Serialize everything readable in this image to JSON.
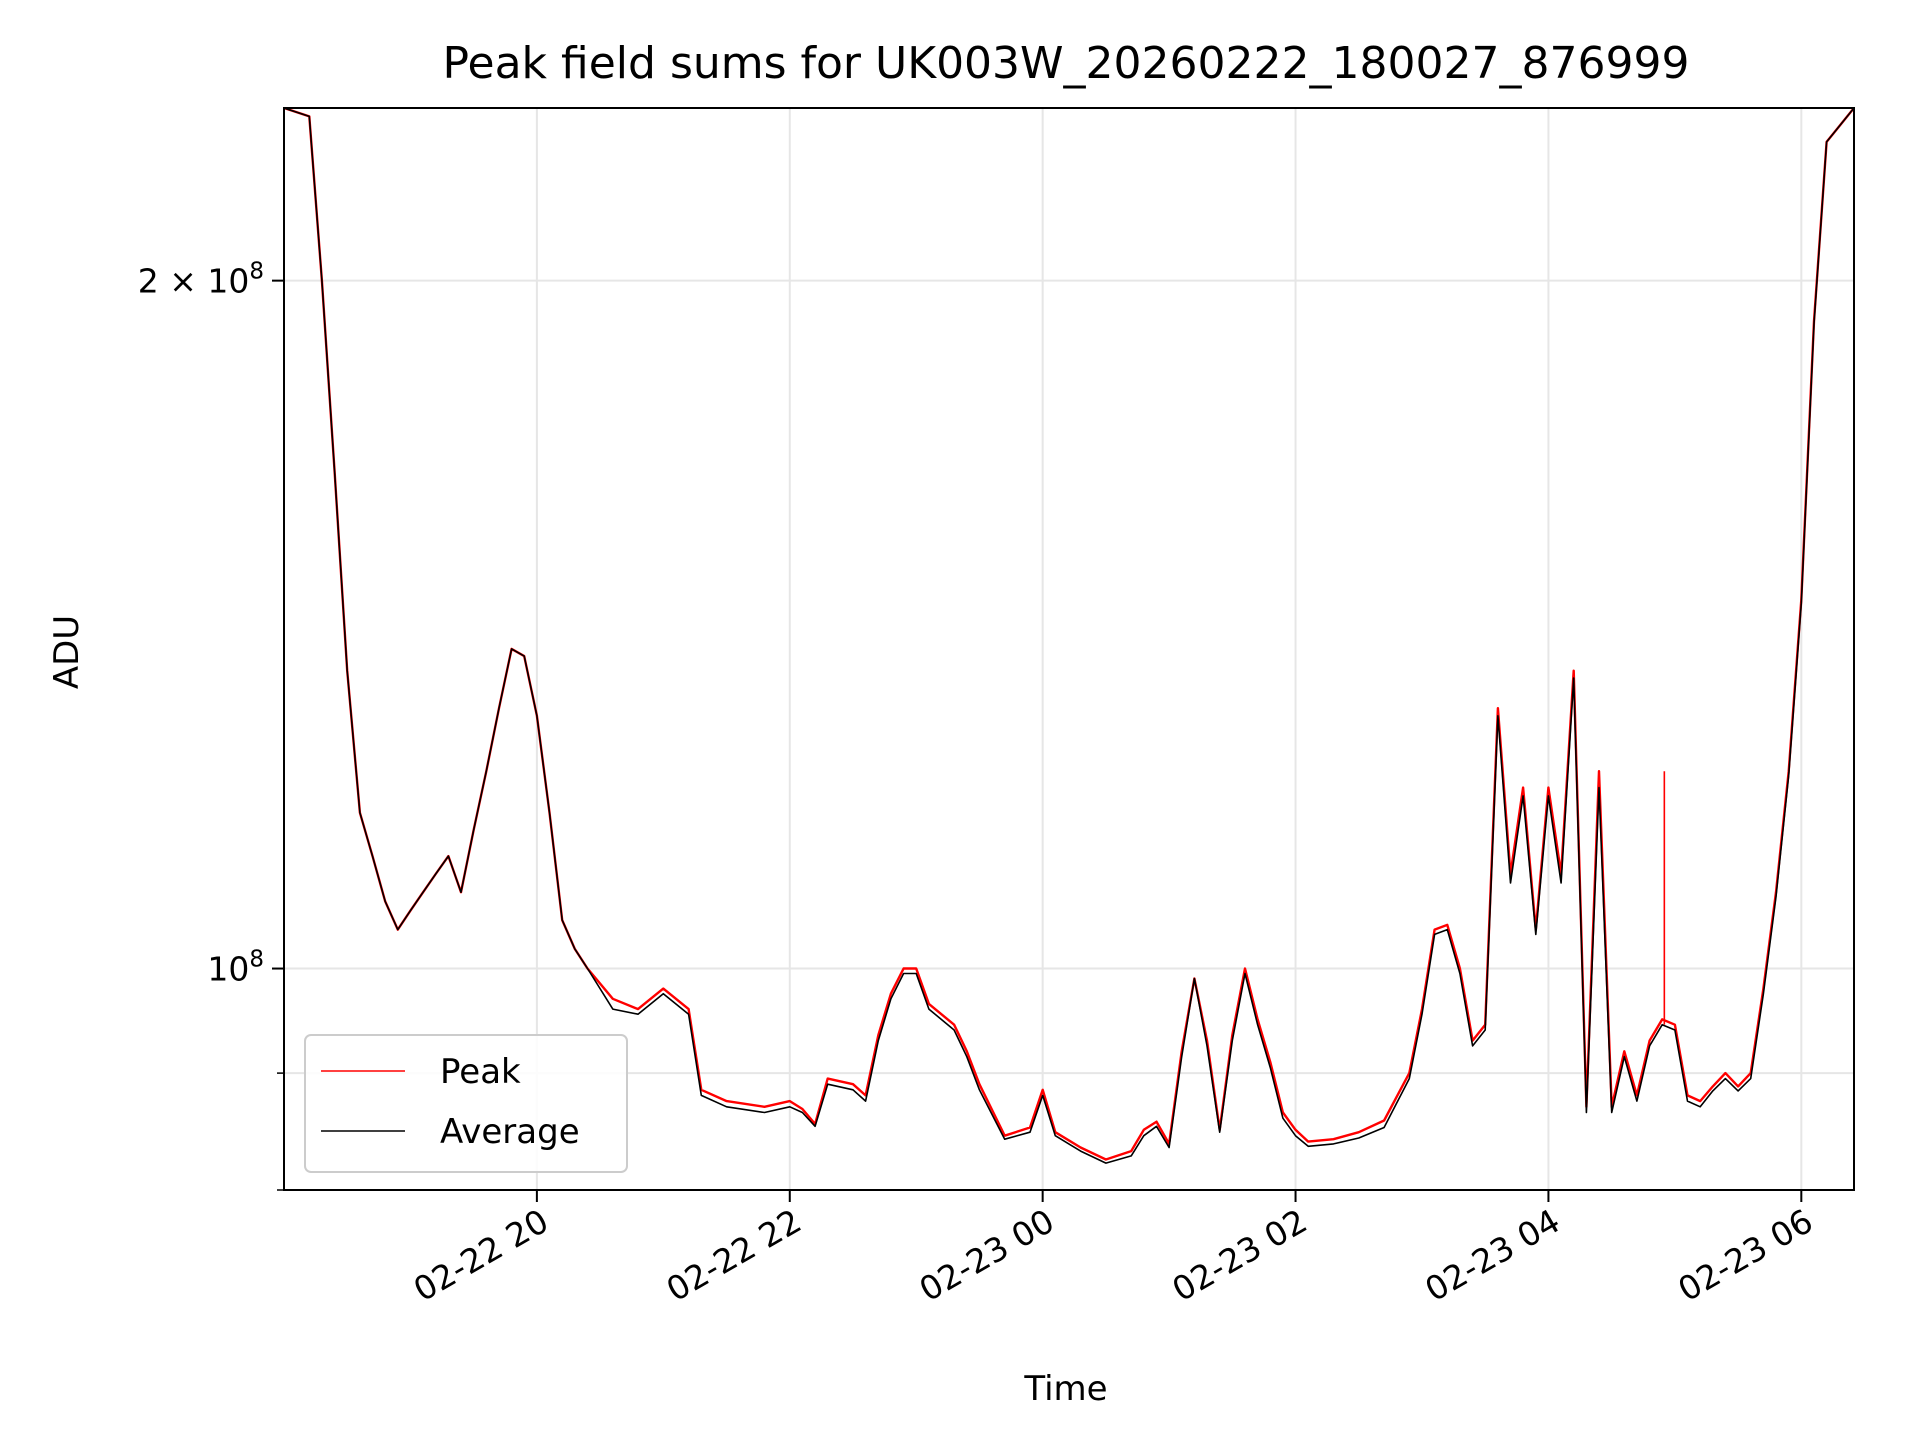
{
  "chart_data": {
    "type": "line",
    "title": "Peak field sums for UK003W_20260222_180027_876999",
    "xlabel": "Time",
    "ylabel": "ADU",
    "x_range": [
      "2026-02-22 18:00",
      "2026-02-23 06:25"
    ],
    "ylim": [
      80000000.0,
      238000000.0
    ],
    "y_scale": "log",
    "grid": true,
    "legend_position": "lower-left",
    "x_ticks": [
      {
        "value": "2026-02-22 20:00",
        "label": "02-22 20"
      },
      {
        "value": "2026-02-22 22:00",
        "label": "02-22 22"
      },
      {
        "value": "2026-02-23 00:00",
        "label": "02-23 00"
      },
      {
        "value": "2026-02-23 02:00",
        "label": "02-23 02"
      },
      {
        "value": "2026-02-23 04:00",
        "label": "02-23 04"
      },
      {
        "value": "2026-02-23 06:00",
        "label": "02-23 06"
      }
    ],
    "y_major_ticks": [
      {
        "value": 100000000,
        "base": "10",
        "exp": "8",
        "coef": ""
      },
      {
        "value": 200000000,
        "base": "10",
        "exp": "8",
        "coef": "2"
      }
    ],
    "y_minor_ticks": [
      80000000,
      90000000
    ],
    "series": [
      {
        "name": "Peak",
        "color": "#ff0000",
        "points": [
          [
            "2026-02-22 18:00",
            238000000.0
          ],
          [
            "2026-02-22 18:12",
            236000000.0
          ],
          [
            "2026-02-22 18:18",
            200000000.0
          ],
          [
            "2026-02-22 18:24",
            165000000.0
          ],
          [
            "2026-02-22 18:30",
            135000000.0
          ],
          [
            "2026-02-22 18:36",
            117000000.0
          ],
          [
            "2026-02-22 18:42",
            112000000.0
          ],
          [
            "2026-02-22 18:48",
            107000000.0
          ],
          [
            "2026-02-22 18:54",
            104000000.0
          ],
          [
            "2026-02-22 19:00",
            106000000.0
          ],
          [
            "2026-02-22 19:06",
            108000000.0
          ],
          [
            "2026-02-22 19:12",
            110000000.0
          ],
          [
            "2026-02-22 19:18",
            112000000.0
          ],
          [
            "2026-02-22 19:24",
            108000000.0
          ],
          [
            "2026-02-22 19:30",
            115000000.0
          ],
          [
            "2026-02-22 19:36",
            122000000.0
          ],
          [
            "2026-02-22 19:42",
            130000000.0
          ],
          [
            "2026-02-22 19:48",
            138000000.0
          ],
          [
            "2026-02-22 19:54",
            137000000.0
          ],
          [
            "2026-02-22 20:00",
            129000000.0
          ],
          [
            "2026-02-22 20:06",
            117000000.0
          ],
          [
            "2026-02-22 20:12",
            105000000.0
          ],
          [
            "2026-02-22 20:18",
            102000000.0
          ],
          [
            "2026-02-22 20:24",
            100000000.0
          ],
          [
            "2026-02-22 20:36",
            97000000.0
          ],
          [
            "2026-02-22 20:48",
            96000000.0
          ],
          [
            "2026-02-22 21:00",
            98000000.0
          ],
          [
            "2026-02-22 21:12",
            96000000.0
          ],
          [
            "2026-02-22 21:18",
            88500000.0
          ],
          [
            "2026-02-22 21:30",
            87500000.0
          ],
          [
            "2026-02-22 21:48",
            87000000.0
          ],
          [
            "2026-02-22 22:00",
            87500000.0
          ],
          [
            "2026-02-22 22:06",
            86800000.0
          ],
          [
            "2026-02-22 22:12",
            85500000.0
          ],
          [
            "2026-02-22 22:18",
            89500000.0
          ],
          [
            "2026-02-22 22:30",
            89000000.0
          ],
          [
            "2026-02-22 22:36",
            88000000.0
          ],
          [
            "2026-02-22 22:42",
            93500000.0
          ],
          [
            "2026-02-22 22:48",
            97500000.0
          ],
          [
            "2026-02-22 22:54",
            100000000.0
          ],
          [
            "2026-02-22 23:00",
            100000000.0
          ],
          [
            "2026-02-22 23:06",
            96500000.0
          ],
          [
            "2026-02-22 23:18",
            94500000.0
          ],
          [
            "2026-02-22 23:24",
            92000000.0
          ],
          [
            "2026-02-22 23:30",
            89000000.0
          ],
          [
            "2026-02-22 23:42",
            84500000.0
          ],
          [
            "2026-02-22 23:54",
            85200000.0
          ],
          [
            "2026-02-23 00:00",
            88500000.0
          ],
          [
            "2026-02-23 00:06",
            84800000.0
          ],
          [
            "2026-02-23 00:18",
            83500000.0
          ],
          [
            "2026-02-23 00:30",
            82500000.0
          ],
          [
            "2026-02-23 00:42",
            83200000.0
          ],
          [
            "2026-02-23 00:48",
            85000000.0
          ],
          [
            "2026-02-23 00:54",
            85700000.0
          ],
          [
            "2026-02-23 01:00",
            83800000.0
          ],
          [
            "2026-02-23 01:06",
            92000000.0
          ],
          [
            "2026-02-23 01:12",
            99000000.0
          ],
          [
            "2026-02-23 01:18",
            93000000.0
          ],
          [
            "2026-02-23 01:24",
            85000000.0
          ],
          [
            "2026-02-23 01:30",
            93500000.0
          ],
          [
            "2026-02-23 01:36",
            100000000.0
          ],
          [
            "2026-02-23 01:42",
            95000000.0
          ],
          [
            "2026-02-23 01:48",
            91000000.0
          ],
          [
            "2026-02-23 01:54",
            86500000.0
          ],
          [
            "2026-02-23 02:00",
            85000000.0
          ],
          [
            "2026-02-23 02:06",
            84000000.0
          ],
          [
            "2026-02-23 02:18",
            84200000.0
          ],
          [
            "2026-02-23 02:30",
            84800000.0
          ],
          [
            "2026-02-23 02:42",
            85800000.0
          ],
          [
            "2026-02-23 02:54",
            90000000.0
          ],
          [
            "2026-02-23 03:00",
            96000000.0
          ],
          [
            "2026-02-23 03:06",
            104000000.0
          ],
          [
            "2026-02-23 03:12",
            104500000.0
          ],
          [
            "2026-02-23 03:18",
            100000000.0
          ],
          [
            "2026-02-23 03:24",
            93000000.0
          ],
          [
            "2026-02-23 03:30",
            94500000.0
          ],
          [
            "2026-02-23 03:36",
            130000000.0
          ],
          [
            "2026-02-23 03:42",
            110000000.0
          ],
          [
            "2026-02-23 03:48",
            120000000.0
          ],
          [
            "2026-02-23 03:54",
            104000000.0
          ],
          [
            "2026-02-23 04:00",
            120000000.0
          ],
          [
            "2026-02-23 04:06",
            110000000.0
          ],
          [
            "2026-02-23 04:12",
            135000000.0
          ],
          [
            "2026-02-23 04:18",
            87000000.0
          ],
          [
            "2026-02-23 04:24",
            122000000.0
          ],
          [
            "2026-02-23 04:30",
            87000000.0
          ],
          [
            "2026-02-23 04:36",
            92000000.0
          ],
          [
            "2026-02-23 04:42",
            88000000.0
          ],
          [
            "2026-02-23 04:48",
            93000000.0
          ],
          [
            "2026-02-23 04:54",
            95000000.0
          ],
          [
            "2026-02-23 05:00",
            94500000.0
          ],
          [
            "2026-02-23 05:06",
            88000000.0
          ],
          [
            "2026-02-23 05:12",
            87500000.0
          ],
          [
            "2026-02-23 05:18",
            88800000.0
          ],
          [
            "2026-02-23 05:24",
            90000000.0
          ],
          [
            "2026-02-23 05:30",
            88800000.0
          ],
          [
            "2026-02-23 05:36",
            90000000.0
          ],
          [
            "2026-02-23 05:42",
            98000000.0
          ],
          [
            "2026-02-23 05:48",
            108000000.0
          ],
          [
            "2026-02-23 05:54",
            122000000.0
          ],
          [
            "2026-02-23 06:00",
            145000000.0
          ],
          [
            "2026-02-23 06:06",
            192000000.0
          ],
          [
            "2026-02-23 06:12",
            230000000.0
          ],
          [
            "2026-02-23 06:25",
            238000000.0
          ]
        ]
      },
      {
        "name": "Average",
        "color": "#000000",
        "points": [
          [
            "2026-02-22 18:00",
            238000000.0
          ],
          [
            "2026-02-22 18:12",
            236000000.0
          ],
          [
            "2026-02-22 18:18",
            200000000.0
          ],
          [
            "2026-02-22 18:24",
            165000000.0
          ],
          [
            "2026-02-22 18:30",
            135000000.0
          ],
          [
            "2026-02-22 18:36",
            117000000.0
          ],
          [
            "2026-02-22 18:42",
            112000000.0
          ],
          [
            "2026-02-22 18:48",
            107000000.0
          ],
          [
            "2026-02-22 18:54",
            104000000.0
          ],
          [
            "2026-02-22 19:00",
            106000000.0
          ],
          [
            "2026-02-22 19:06",
            108000000.0
          ],
          [
            "2026-02-22 19:12",
            110000000.0
          ],
          [
            "2026-02-22 19:18",
            112000000.0
          ],
          [
            "2026-02-22 19:24",
            108000000.0
          ],
          [
            "2026-02-22 19:30",
            115000000.0
          ],
          [
            "2026-02-22 19:36",
            122000000.0
          ],
          [
            "2026-02-22 19:42",
            130000000.0
          ],
          [
            "2026-02-22 19:48",
            138000000.0
          ],
          [
            "2026-02-22 19:54",
            137000000.0
          ],
          [
            "2026-02-22 20:00",
            129000000.0
          ],
          [
            "2026-02-22 20:06",
            117000000.0
          ],
          [
            "2026-02-22 20:12",
            105000000.0
          ],
          [
            "2026-02-22 20:18",
            102000000.0
          ],
          [
            "2026-02-22 20:24",
            100000000.0
          ],
          [
            "2026-02-22 20:36",
            96000000.0
          ],
          [
            "2026-02-22 20:48",
            95500000.0
          ],
          [
            "2026-02-22 21:00",
            97500000.0
          ],
          [
            "2026-02-22 21:12",
            95500000.0
          ],
          [
            "2026-02-22 21:18",
            88000000.0
          ],
          [
            "2026-02-22 21:30",
            87000000.0
          ],
          [
            "2026-02-22 21:48",
            86500000.0
          ],
          [
            "2026-02-22 22:00",
            87000000.0
          ],
          [
            "2026-02-22 22:06",
            86500000.0
          ],
          [
            "2026-02-22 22:12",
            85300000.0
          ],
          [
            "2026-02-22 22:18",
            89000000.0
          ],
          [
            "2026-02-22 22:30",
            88500000.0
          ],
          [
            "2026-02-22 22:36",
            87500000.0
          ],
          [
            "2026-02-22 22:42",
            93000000.0
          ],
          [
            "2026-02-22 22:48",
            97000000.0
          ],
          [
            "2026-02-22 22:54",
            99500000.0
          ],
          [
            "2026-02-22 23:00",
            99500000.0
          ],
          [
            "2026-02-22 23:06",
            96000000.0
          ],
          [
            "2026-02-22 23:18",
            94000000.0
          ],
          [
            "2026-02-22 23:24",
            91500000.0
          ],
          [
            "2026-02-22 23:30",
            88500000.0
          ],
          [
            "2026-02-22 23:42",
            84200000.0
          ],
          [
            "2026-02-22 23:54",
            84800000.0
          ],
          [
            "2026-02-23 00:00",
            88000000.0
          ],
          [
            "2026-02-23 00:06",
            84500000.0
          ],
          [
            "2026-02-23 00:18",
            83200000.0
          ],
          [
            "2026-02-23 00:30",
            82200000.0
          ],
          [
            "2026-02-23 00:42",
            82800000.0
          ],
          [
            "2026-02-23 00:48",
            84500000.0
          ],
          [
            "2026-02-23 00:54",
            85300000.0
          ],
          [
            "2026-02-23 01:00",
            83500000.0
          ],
          [
            "2026-02-23 01:06",
            91500000.0
          ],
          [
            "2026-02-23 01:12",
            99000000.0
          ],
          [
            "2026-02-23 01:18",
            92500000.0
          ],
          [
            "2026-02-23 01:24",
            84800000.0
          ],
          [
            "2026-02-23 01:30",
            93000000.0
          ],
          [
            "2026-02-23 01:36",
            99500000.0
          ],
          [
            "2026-02-23 01:42",
            94500000.0
          ],
          [
            "2026-02-23 01:48",
            90500000.0
          ],
          [
            "2026-02-23 01:54",
            86000000.0
          ],
          [
            "2026-02-23 02:00",
            84500000.0
          ],
          [
            "2026-02-23 02:06",
            83600000.0
          ],
          [
            "2026-02-23 02:18",
            83800000.0
          ],
          [
            "2026-02-23 02:30",
            84300000.0
          ],
          [
            "2026-02-23 02:42",
            85200000.0
          ],
          [
            "2026-02-23 02:54",
            89500000.0
          ],
          [
            "2026-02-23 03:00",
            95500000.0
          ],
          [
            "2026-02-23 03:06",
            103500000.0
          ],
          [
            "2026-02-23 03:12",
            104000000.0
          ],
          [
            "2026-02-23 03:18",
            99500000.0
          ],
          [
            "2026-02-23 03:24",
            92500000.0
          ],
          [
            "2026-02-23 03:30",
            94000000.0
          ],
          [
            "2026-02-23 03:36",
            129000000.0
          ],
          [
            "2026-02-23 03:42",
            109000000.0
          ],
          [
            "2026-02-23 03:48",
            119000000.0
          ],
          [
            "2026-02-23 03:54",
            103500000.0
          ],
          [
            "2026-02-23 04:00",
            119000000.0
          ],
          [
            "2026-02-23 04:06",
            109000000.0
          ],
          [
            "2026-02-23 04:12",
            134000000.0
          ],
          [
            "2026-02-23 04:18",
            86500000.0
          ],
          [
            "2026-02-23 04:24",
            120000000.0
          ],
          [
            "2026-02-23 04:30",
            86500000.0
          ],
          [
            "2026-02-23 04:36",
            91500000.0
          ],
          [
            "2026-02-23 04:42",
            87500000.0
          ],
          [
            "2026-02-23 04:48",
            92500000.0
          ],
          [
            "2026-02-23 04:54",
            94500000.0
          ],
          [
            "2026-02-23 05:00",
            94000000.0
          ],
          [
            "2026-02-23 05:06",
            87500000.0
          ],
          [
            "2026-02-23 05:12",
            87000000.0
          ],
          [
            "2026-02-23 05:18",
            88400000.0
          ],
          [
            "2026-02-23 05:24",
            89500000.0
          ],
          [
            "2026-02-23 05:30",
            88400000.0
          ],
          [
            "2026-02-23 05:36",
            89500000.0
          ],
          [
            "2026-02-23 05:42",
            97500000.0
          ],
          [
            "2026-02-23 05:48",
            107500000.0
          ],
          [
            "2026-02-23 05:54",
            121500000.0
          ],
          [
            "2026-02-23 06:00",
            144500000.0
          ],
          [
            "2026-02-23 06:06",
            191500000.0
          ],
          [
            "2026-02-23 06:12",
            230000000.0
          ],
          [
            "2026-02-23 06:25",
            238000000.0
          ]
        ],
        "note_spike": null
      }
    ],
    "spike": {
      "series": "Peak",
      "x": "2026-02-23 04:55",
      "y": 122000000.0
    }
  }
}
